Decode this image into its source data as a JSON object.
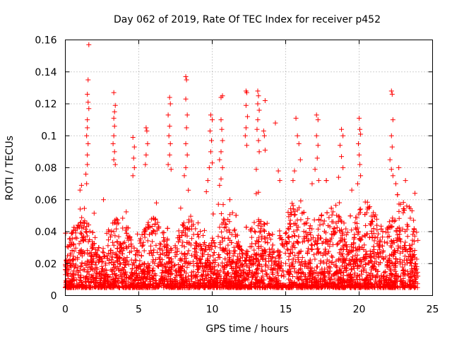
{
  "chart_data": {
    "type": "scatter",
    "title": "Day 062 of 2019, Rate Of TEC Index for receiver p452",
    "xlabel": "GPS time / hours",
    "ylabel": "ROTI / TECUs",
    "xlim": [
      0,
      25
    ],
    "ylim": [
      0,
      0.16
    ],
    "xticks": [
      0,
      5,
      10,
      15,
      20,
      25
    ],
    "yticks": [
      0,
      0.02,
      0.04,
      0.06,
      0.08,
      0.1,
      0.12,
      0.14,
      0.16
    ],
    "xtick_labels": [
      "0",
      "5",
      "10",
      "15",
      "20",
      "25"
    ],
    "ytick_labels": [
      "0",
      "0.02",
      "0.04",
      "0.06",
      "0.08",
      "0.1",
      "0.12",
      "0.14",
      "0.16"
    ],
    "grid": true,
    "marker": "+",
    "color": "#ff0000",
    "time_range": [
      0,
      24
    ],
    "series": [
      {
        "name": "ROTI",
        "points": [
          [
            1.6,
            0.157
          ],
          [
            1.55,
            0.135
          ],
          [
            1.5,
            0.126
          ],
          [
            1.55,
            0.121
          ],
          [
            1.6,
            0.117
          ],
          [
            1.5,
            0.11
          ],
          [
            1.5,
            0.105
          ],
          [
            1.45,
            0.1
          ],
          [
            1.55,
            0.095
          ],
          [
            1.5,
            0.088
          ],
          [
            1.5,
            0.082
          ],
          [
            1.4,
            0.076
          ],
          [
            1.45,
            0.07
          ],
          [
            1.1,
            0.069
          ],
          [
            1.0,
            0.066
          ],
          [
            3.3,
            0.127
          ],
          [
            3.4,
            0.119
          ],
          [
            3.35,
            0.115
          ],
          [
            3.3,
            0.111
          ],
          [
            3.35,
            0.106
          ],
          [
            3.3,
            0.1
          ],
          [
            3.25,
            0.095
          ],
          [
            3.35,
            0.09
          ],
          [
            3.3,
            0.085
          ],
          [
            3.4,
            0.082
          ],
          [
            4.6,
            0.099
          ],
          [
            4.7,
            0.093
          ],
          [
            4.65,
            0.086
          ],
          [
            4.7,
            0.08
          ],
          [
            4.6,
            0.075
          ],
          [
            5.5,
            0.105
          ],
          [
            5.55,
            0.103
          ],
          [
            5.6,
            0.095
          ],
          [
            5.5,
            0.088
          ],
          [
            5.45,
            0.082
          ],
          [
            7.1,
            0.124
          ],
          [
            7.15,
            0.12
          ],
          [
            7.0,
            0.113
          ],
          [
            7.1,
            0.106
          ],
          [
            7.05,
            0.1
          ],
          [
            7.15,
            0.095
          ],
          [
            7.1,
            0.088
          ],
          [
            7.0,
            0.082
          ],
          [
            7.2,
            0.079
          ],
          [
            8.2,
            0.137
          ],
          [
            8.25,
            0.135
          ],
          [
            8.2,
            0.123
          ],
          [
            8.3,
            0.113
          ],
          [
            8.25,
            0.105
          ],
          [
            8.2,
            0.095
          ],
          [
            8.3,
            0.088
          ],
          [
            8.2,
            0.08
          ],
          [
            8.1,
            0.075
          ],
          [
            9.9,
            0.113
          ],
          [
            10.0,
            0.11
          ],
          [
            9.85,
            0.103
          ],
          [
            9.95,
            0.097
          ],
          [
            9.9,
            0.09
          ],
          [
            10.0,
            0.083
          ],
          [
            9.8,
            0.08
          ],
          [
            9.7,
            0.072
          ],
          [
            9.6,
            0.065
          ],
          [
            10.7,
            0.125
          ],
          [
            10.6,
            0.124
          ],
          [
            10.6,
            0.11
          ],
          [
            10.65,
            0.104
          ],
          [
            10.7,
            0.097
          ],
          [
            10.6,
            0.09
          ],
          [
            10.5,
            0.085
          ],
          [
            10.7,
            0.08
          ],
          [
            10.6,
            0.073
          ],
          [
            10.5,
            0.069
          ],
          [
            12.3,
            0.128
          ],
          [
            12.35,
            0.127
          ],
          [
            12.3,
            0.119
          ],
          [
            12.4,
            0.112
          ],
          [
            12.3,
            0.105
          ],
          [
            12.25,
            0.1
          ],
          [
            12.35,
            0.094
          ],
          [
            13.1,
            0.128
          ],
          [
            13.15,
            0.125
          ],
          [
            13.1,
            0.12
          ],
          [
            13.2,
            0.116
          ],
          [
            13.1,
            0.11
          ],
          [
            13.05,
            0.104
          ],
          [
            13.15,
            0.097
          ],
          [
            13.2,
            0.09
          ],
          [
            13.0,
            0.079
          ],
          [
            13.6,
            0.122
          ],
          [
            13.5,
            0.103
          ],
          [
            13.55,
            0.1
          ],
          [
            13.6,
            0.091
          ],
          [
            14.3,
            0.108
          ],
          [
            14.5,
            0.078
          ],
          [
            14.6,
            0.072
          ],
          [
            15.7,
            0.111
          ],
          [
            15.8,
            0.1
          ],
          [
            15.9,
            0.095
          ],
          [
            16.0,
            0.085
          ],
          [
            15.6,
            0.078
          ],
          [
            15.5,
            0.072
          ],
          [
            17.1,
            0.113
          ],
          [
            17.2,
            0.11
          ],
          [
            17.1,
            0.1
          ],
          [
            17.2,
            0.094
          ],
          [
            17.15,
            0.086
          ],
          [
            17.0,
            0.079
          ],
          [
            17.25,
            0.072
          ],
          [
            18.8,
            0.104
          ],
          [
            18.9,
            0.1
          ],
          [
            18.7,
            0.094
          ],
          [
            18.8,
            0.087
          ],
          [
            18.9,
            0.08
          ],
          [
            18.6,
            0.074
          ],
          [
            20.0,
            0.111
          ],
          [
            20.05,
            0.104
          ],
          [
            20.1,
            0.101
          ],
          [
            19.95,
            0.095
          ],
          [
            20.0,
            0.088
          ],
          [
            20.05,
            0.082
          ],
          [
            20.1,
            0.075
          ],
          [
            19.9,
            0.07
          ],
          [
            22.2,
            0.128
          ],
          [
            22.25,
            0.126
          ],
          [
            22.3,
            0.11
          ],
          [
            22.2,
            0.1
          ],
          [
            22.25,
            0.093
          ],
          [
            22.1,
            0.085
          ],
          [
            22.2,
            0.079
          ],
          [
            22.3,
            0.075
          ],
          [
            22.7,
            0.08
          ],
          [
            22.5,
            0.07
          ],
          [
            2.6,
            0.06
          ],
          [
            23.8,
            0.064
          ],
          [
            23.6,
            0.053
          ],
          [
            19.5,
            0.066
          ],
          [
            16.8,
            0.07
          ],
          [
            11.2,
            0.06
          ],
          [
            6.2,
            0.058
          ]
        ]
      }
    ]
  }
}
